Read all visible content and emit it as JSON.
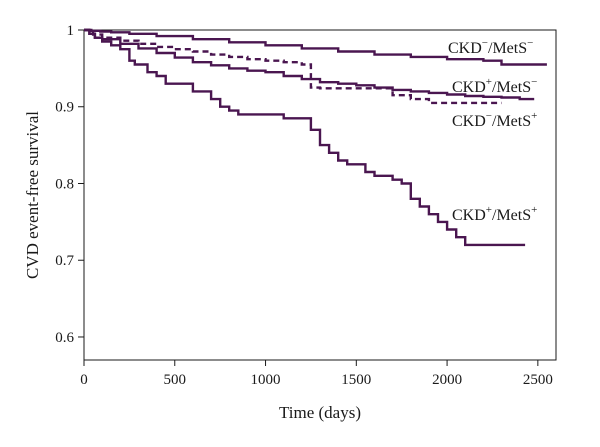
{
  "chart_data": {
    "type": "line",
    "title": "",
    "xlabel": "Time (days)",
    "ylabel": "CVD event-free survival",
    "xlim": [
      0,
      2600
    ],
    "ylim": [
      0.57,
      1.0
    ],
    "xticks": [
      0,
      500,
      1000,
      1500,
      2000,
      2500
    ],
    "yticks": [
      0.6,
      0.7,
      0.8,
      0.9,
      1
    ],
    "ytick_labels": [
      "0.6",
      "0.7",
      "0.8",
      "0.9",
      "1"
    ],
    "grid": false,
    "line_color": "#4a1650",
    "series": [
      {
        "name": "CKD−/MetS−",
        "label_parts": [
          {
            "text": "CKD",
            "sup": false
          },
          {
            "text": "−",
            "sup": true
          },
          {
            "text": "/MetS",
            "sup": false
          },
          {
            "text": "−",
            "sup": true
          }
        ],
        "style": "solid",
        "x": [
          0,
          40,
          90,
          150,
          250,
          400,
          600,
          800,
          1000,
          1200,
          1400,
          1600,
          1800,
          2000,
          2200,
          2300,
          2550
        ],
        "y": [
          1.0,
          0.999,
          0.998,
          0.997,
          0.995,
          0.992,
          0.988,
          0.984,
          0.98,
          0.976,
          0.972,
          0.968,
          0.965,
          0.962,
          0.96,
          0.955,
          0.955
        ]
      },
      {
        "name": "CKD+/MetS−",
        "label_parts": [
          {
            "text": "CKD",
            "sup": false
          },
          {
            "text": "+",
            "sup": true
          },
          {
            "text": "/MetS",
            "sup": false
          },
          {
            "text": "−",
            "sup": true
          }
        ],
        "style": "solid",
        "x": [
          0,
          30,
          60,
          100,
          200,
          300,
          400,
          500,
          600,
          700,
          800,
          900,
          1000,
          1100,
          1200,
          1300,
          1400,
          1500,
          1600,
          1700,
          1800,
          1900,
          2000,
          2100,
          2200,
          2300,
          2400,
          2480
        ],
        "y": [
          1.0,
          0.995,
          0.99,
          0.988,
          0.982,
          0.976,
          0.97,
          0.964,
          0.958,
          0.954,
          0.95,
          0.947,
          0.945,
          0.94,
          0.936,
          0.932,
          0.93,
          0.928,
          0.925,
          0.922,
          0.92,
          0.918,
          0.916,
          0.914,
          0.913,
          0.912,
          0.91,
          0.91
        ]
      },
      {
        "name": "CKD−/MetS+",
        "label_parts": [
          {
            "text": "CKD",
            "sup": false
          },
          {
            "text": "−",
            "sup": true
          },
          {
            "text": "/MetS",
            "sup": false
          },
          {
            "text": "+",
            "sup": true
          }
        ],
        "style": "dashed",
        "x": [
          0,
          50,
          100,
          200,
          300,
          400,
          500,
          600,
          700,
          800,
          900,
          1000,
          1100,
          1200,
          1250,
          1300,
          1400,
          1500,
          1600,
          1700,
          1800,
          1900,
          2000,
          2100,
          2200,
          2300
        ],
        "y": [
          1.0,
          0.994,
          0.99,
          0.986,
          0.982,
          0.978,
          0.975,
          0.972,
          0.968,
          0.965,
          0.962,
          0.96,
          0.958,
          0.955,
          0.925,
          0.924,
          0.924,
          0.924,
          0.924,
          0.915,
          0.91,
          0.905,
          0.905,
          0.905,
          0.905,
          0.905
        ]
      },
      {
        "name": "CKD+/MetS+",
        "label_parts": [
          {
            "text": "CKD",
            "sup": false
          },
          {
            "text": "+",
            "sup": true
          },
          {
            "text": "/MetS",
            "sup": false
          },
          {
            "text": "+",
            "sup": true
          }
        ],
        "style": "solid",
        "x": [
          0,
          30,
          60,
          100,
          150,
          200,
          250,
          280,
          350,
          400,
          450,
          500,
          600,
          650,
          700,
          750,
          800,
          850,
          900,
          1000,
          1100,
          1200,
          1250,
          1300,
          1350,
          1400,
          1450,
          1500,
          1550,
          1600,
          1650,
          1700,
          1750,
          1800,
          1850,
          1900,
          1950,
          2000,
          2050,
          2100,
          2200,
          2300,
          2430
        ],
        "y": [
          1.0,
          0.995,
          0.99,
          0.985,
          0.98,
          0.975,
          0.96,
          0.955,
          0.945,
          0.94,
          0.93,
          0.93,
          0.92,
          0.92,
          0.91,
          0.9,
          0.895,
          0.89,
          0.89,
          0.89,
          0.885,
          0.885,
          0.87,
          0.85,
          0.84,
          0.83,
          0.825,
          0.825,
          0.815,
          0.81,
          0.81,
          0.805,
          0.8,
          0.78,
          0.77,
          0.76,
          0.75,
          0.74,
          0.73,
          0.72,
          0.72,
          0.72,
          0.72
        ]
      }
    ]
  }
}
